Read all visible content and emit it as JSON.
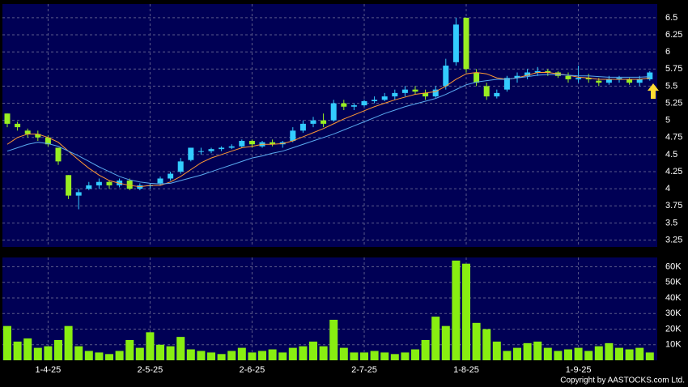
{
  "chart_data": [
    {
      "type": "candlestick",
      "up_color": "#33ccff",
      "down_color": "#99ee22",
      "open": [
        5.1,
        4.95,
        4.85,
        4.8,
        4.75,
        4.6,
        4.2,
        3.9,
        4.0,
        4.05,
        4.1,
        4.05,
        4.12,
        4.0,
        4.05,
        4.08,
        4.15,
        4.25,
        4.42,
        4.55,
        4.55,
        4.58,
        4.6,
        4.62,
        4.7,
        4.62,
        4.68,
        4.65,
        4.7,
        4.85,
        4.95,
        5.0,
        5.0,
        5.25,
        5.2,
        5.22,
        5.28,
        5.3,
        5.35,
        5.4,
        5.45,
        5.4,
        5.35,
        5.5,
        5.85,
        6.5,
        5.7,
        5.5,
        5.35,
        5.45,
        5.62,
        5.65,
        5.7,
        5.72,
        5.7,
        5.65,
        5.6,
        5.62,
        5.58,
        5.55,
        5.6,
        5.6,
        5.55,
        5.6
      ],
      "high": [
        5.1,
        4.98,
        4.88,
        4.85,
        4.78,
        4.6,
        4.2,
        4.0,
        4.1,
        4.15,
        4.12,
        4.15,
        4.15,
        4.08,
        4.08,
        4.18,
        4.25,
        4.45,
        4.6,
        4.6,
        4.6,
        4.62,
        4.65,
        4.72,
        4.72,
        4.7,
        4.72,
        4.7,
        4.9,
        5.0,
        5.05,
        5.1,
        5.3,
        5.3,
        5.25,
        5.3,
        5.35,
        5.4,
        5.45,
        5.5,
        5.5,
        5.45,
        5.5,
        5.9,
        6.5,
        6.5,
        5.75,
        5.55,
        5.45,
        5.65,
        5.7,
        5.75,
        5.78,
        5.75,
        5.72,
        5.7,
        5.8,
        5.68,
        5.62,
        5.65,
        5.65,
        5.62,
        5.65,
        5.72
      ],
      "low": [
        4.9,
        4.85,
        4.75,
        4.7,
        4.62,
        4.35,
        3.85,
        3.7,
        3.98,
        4.0,
        4.0,
        4.02,
        3.98,
        3.98,
        4.0,
        4.05,
        4.12,
        4.22,
        4.4,
        4.5,
        4.52,
        4.55,
        4.58,
        4.6,
        4.6,
        4.6,
        4.62,
        4.6,
        4.68,
        4.82,
        4.9,
        4.9,
        4.98,
        5.15,
        5.15,
        5.2,
        5.25,
        5.28,
        5.3,
        5.35,
        5.38,
        5.3,
        5.33,
        5.45,
        5.8,
        5.7,
        5.5,
        5.3,
        5.32,
        5.42,
        5.55,
        5.6,
        5.65,
        5.65,
        5.62,
        5.55,
        5.55,
        5.55,
        5.5,
        5.52,
        5.55,
        5.52,
        5.5,
        5.58
      ],
      "close": [
        4.95,
        4.9,
        4.8,
        4.75,
        4.65,
        4.4,
        3.9,
        3.95,
        4.05,
        4.1,
        4.05,
        4.12,
        4.0,
        4.05,
        4.05,
        4.15,
        4.22,
        4.4,
        4.6,
        4.55,
        4.58,
        4.6,
        4.62,
        4.7,
        4.65,
        4.68,
        4.65,
        4.68,
        4.85,
        4.95,
        5.0,
        4.95,
        5.25,
        5.2,
        5.22,
        5.28,
        5.3,
        5.35,
        5.4,
        5.45,
        5.42,
        5.35,
        5.45,
        5.8,
        6.4,
        5.75,
        5.55,
        5.35,
        5.4,
        5.62,
        5.65,
        5.7,
        5.72,
        5.7,
        5.65,
        5.6,
        5.62,
        5.6,
        5.55,
        5.6,
        5.62,
        5.55,
        5.6,
        5.7
      ],
      "moving_averages": [
        {
          "color": "#ff9933",
          "values": [
            4.65,
            4.75,
            4.8,
            4.8,
            4.75,
            4.68,
            4.55,
            4.42,
            4.3,
            4.2,
            4.12,
            4.08,
            4.05,
            4.03,
            4.05,
            4.05,
            4.1,
            4.18,
            4.28,
            4.38,
            4.45,
            4.5,
            4.55,
            4.6,
            4.62,
            4.65,
            4.65,
            4.66,
            4.7,
            4.76,
            4.82,
            4.88,
            4.95,
            5.02,
            5.08,
            5.14,
            5.2,
            5.25,
            5.3,
            5.34,
            5.38,
            5.4,
            5.42,
            5.5,
            5.6,
            5.68,
            5.7,
            5.68,
            5.62,
            5.6,
            5.62,
            5.66,
            5.7,
            5.7,
            5.68,
            5.66,
            5.63,
            5.62,
            5.6,
            5.6,
            5.6,
            5.6,
            5.6,
            5.62
          ]
        },
        {
          "color": "#5aaaf0",
          "values": [
            4.55,
            4.6,
            4.65,
            4.68,
            4.66,
            4.62,
            4.55,
            4.48,
            4.4,
            4.32,
            4.25,
            4.18,
            4.13,
            4.1,
            4.08,
            4.07,
            4.08,
            4.12,
            4.16,
            4.2,
            4.25,
            4.3,
            4.35,
            4.4,
            4.45,
            4.48,
            4.52,
            4.55,
            4.6,
            4.65,
            4.7,
            4.75,
            4.8,
            4.86,
            4.92,
            4.98,
            5.04,
            5.1,
            5.15,
            5.2,
            5.24,
            5.28,
            5.32,
            5.38,
            5.45,
            5.52,
            5.56,
            5.58,
            5.6,
            5.6,
            5.62,
            5.64,
            5.66,
            5.67,
            5.67,
            5.66,
            5.65,
            5.65,
            5.64,
            5.63,
            5.63,
            5.63,
            5.63,
            5.64
          ]
        }
      ],
      "ylim": [
        3.15,
        6.7
      ],
      "yticks": [
        3.25,
        3.5,
        3.75,
        4,
        4.25,
        4.5,
        4.75,
        5,
        5.25,
        5.5,
        5.75,
        6,
        6.25,
        6.5
      ],
      "grid": true
    },
    {
      "type": "bar",
      "color": "#88ee11",
      "categories": [
        null,
        null,
        null,
        null,
        "1-4-25",
        null,
        null,
        null,
        null,
        null,
        null,
        null,
        null,
        null,
        "2-5-25",
        null,
        null,
        null,
        null,
        null,
        null,
        null,
        null,
        null,
        "2-6-25",
        null,
        null,
        null,
        null,
        null,
        null,
        null,
        null,
        null,
        null,
        "2-7-25",
        null,
        null,
        null,
        null,
        null,
        null,
        null,
        null,
        null,
        "1-8-25",
        null,
        null,
        null,
        null,
        null,
        null,
        null,
        null,
        null,
        null,
        "1-9-25",
        null,
        null,
        null,
        null,
        null,
        null,
        null
      ],
      "values": [
        22000,
        12000,
        14000,
        8000,
        9000,
        13000,
        22000,
        9000,
        6000,
        5000,
        4000,
        6000,
        13000,
        8000,
        18000,
        10000,
        9000,
        15000,
        7000,
        6000,
        5000,
        4000,
        6000,
        8000,
        5000,
        6000,
        7000,
        5000,
        8000,
        9000,
        12000,
        9000,
        26000,
        8000,
        5000,
        5000,
        6000,
        5000,
        4000,
        5000,
        7000,
        13000,
        28000,
        22000,
        64000,
        62000,
        24000,
        20000,
        12000,
        6000,
        8000,
        11000,
        12000,
        8000,
        6000,
        7000,
        8000,
        6000,
        9000,
        11000,
        8000,
        7000,
        8000,
        5000
      ],
      "ylim": [
        0,
        66000
      ],
      "yticks": [
        {
          "value": 10000,
          "label": "10K"
        },
        {
          "value": 20000,
          "label": "20K"
        },
        {
          "value": 30000,
          "label": "30K"
        },
        {
          "value": 40000,
          "label": "40K"
        },
        {
          "value": 50000,
          "label": "50K"
        },
        {
          "value": 60000,
          "label": "60K"
        }
      ],
      "grid": true
    }
  ],
  "copyright": "Copyright by AASTOCKS.com Ltd."
}
